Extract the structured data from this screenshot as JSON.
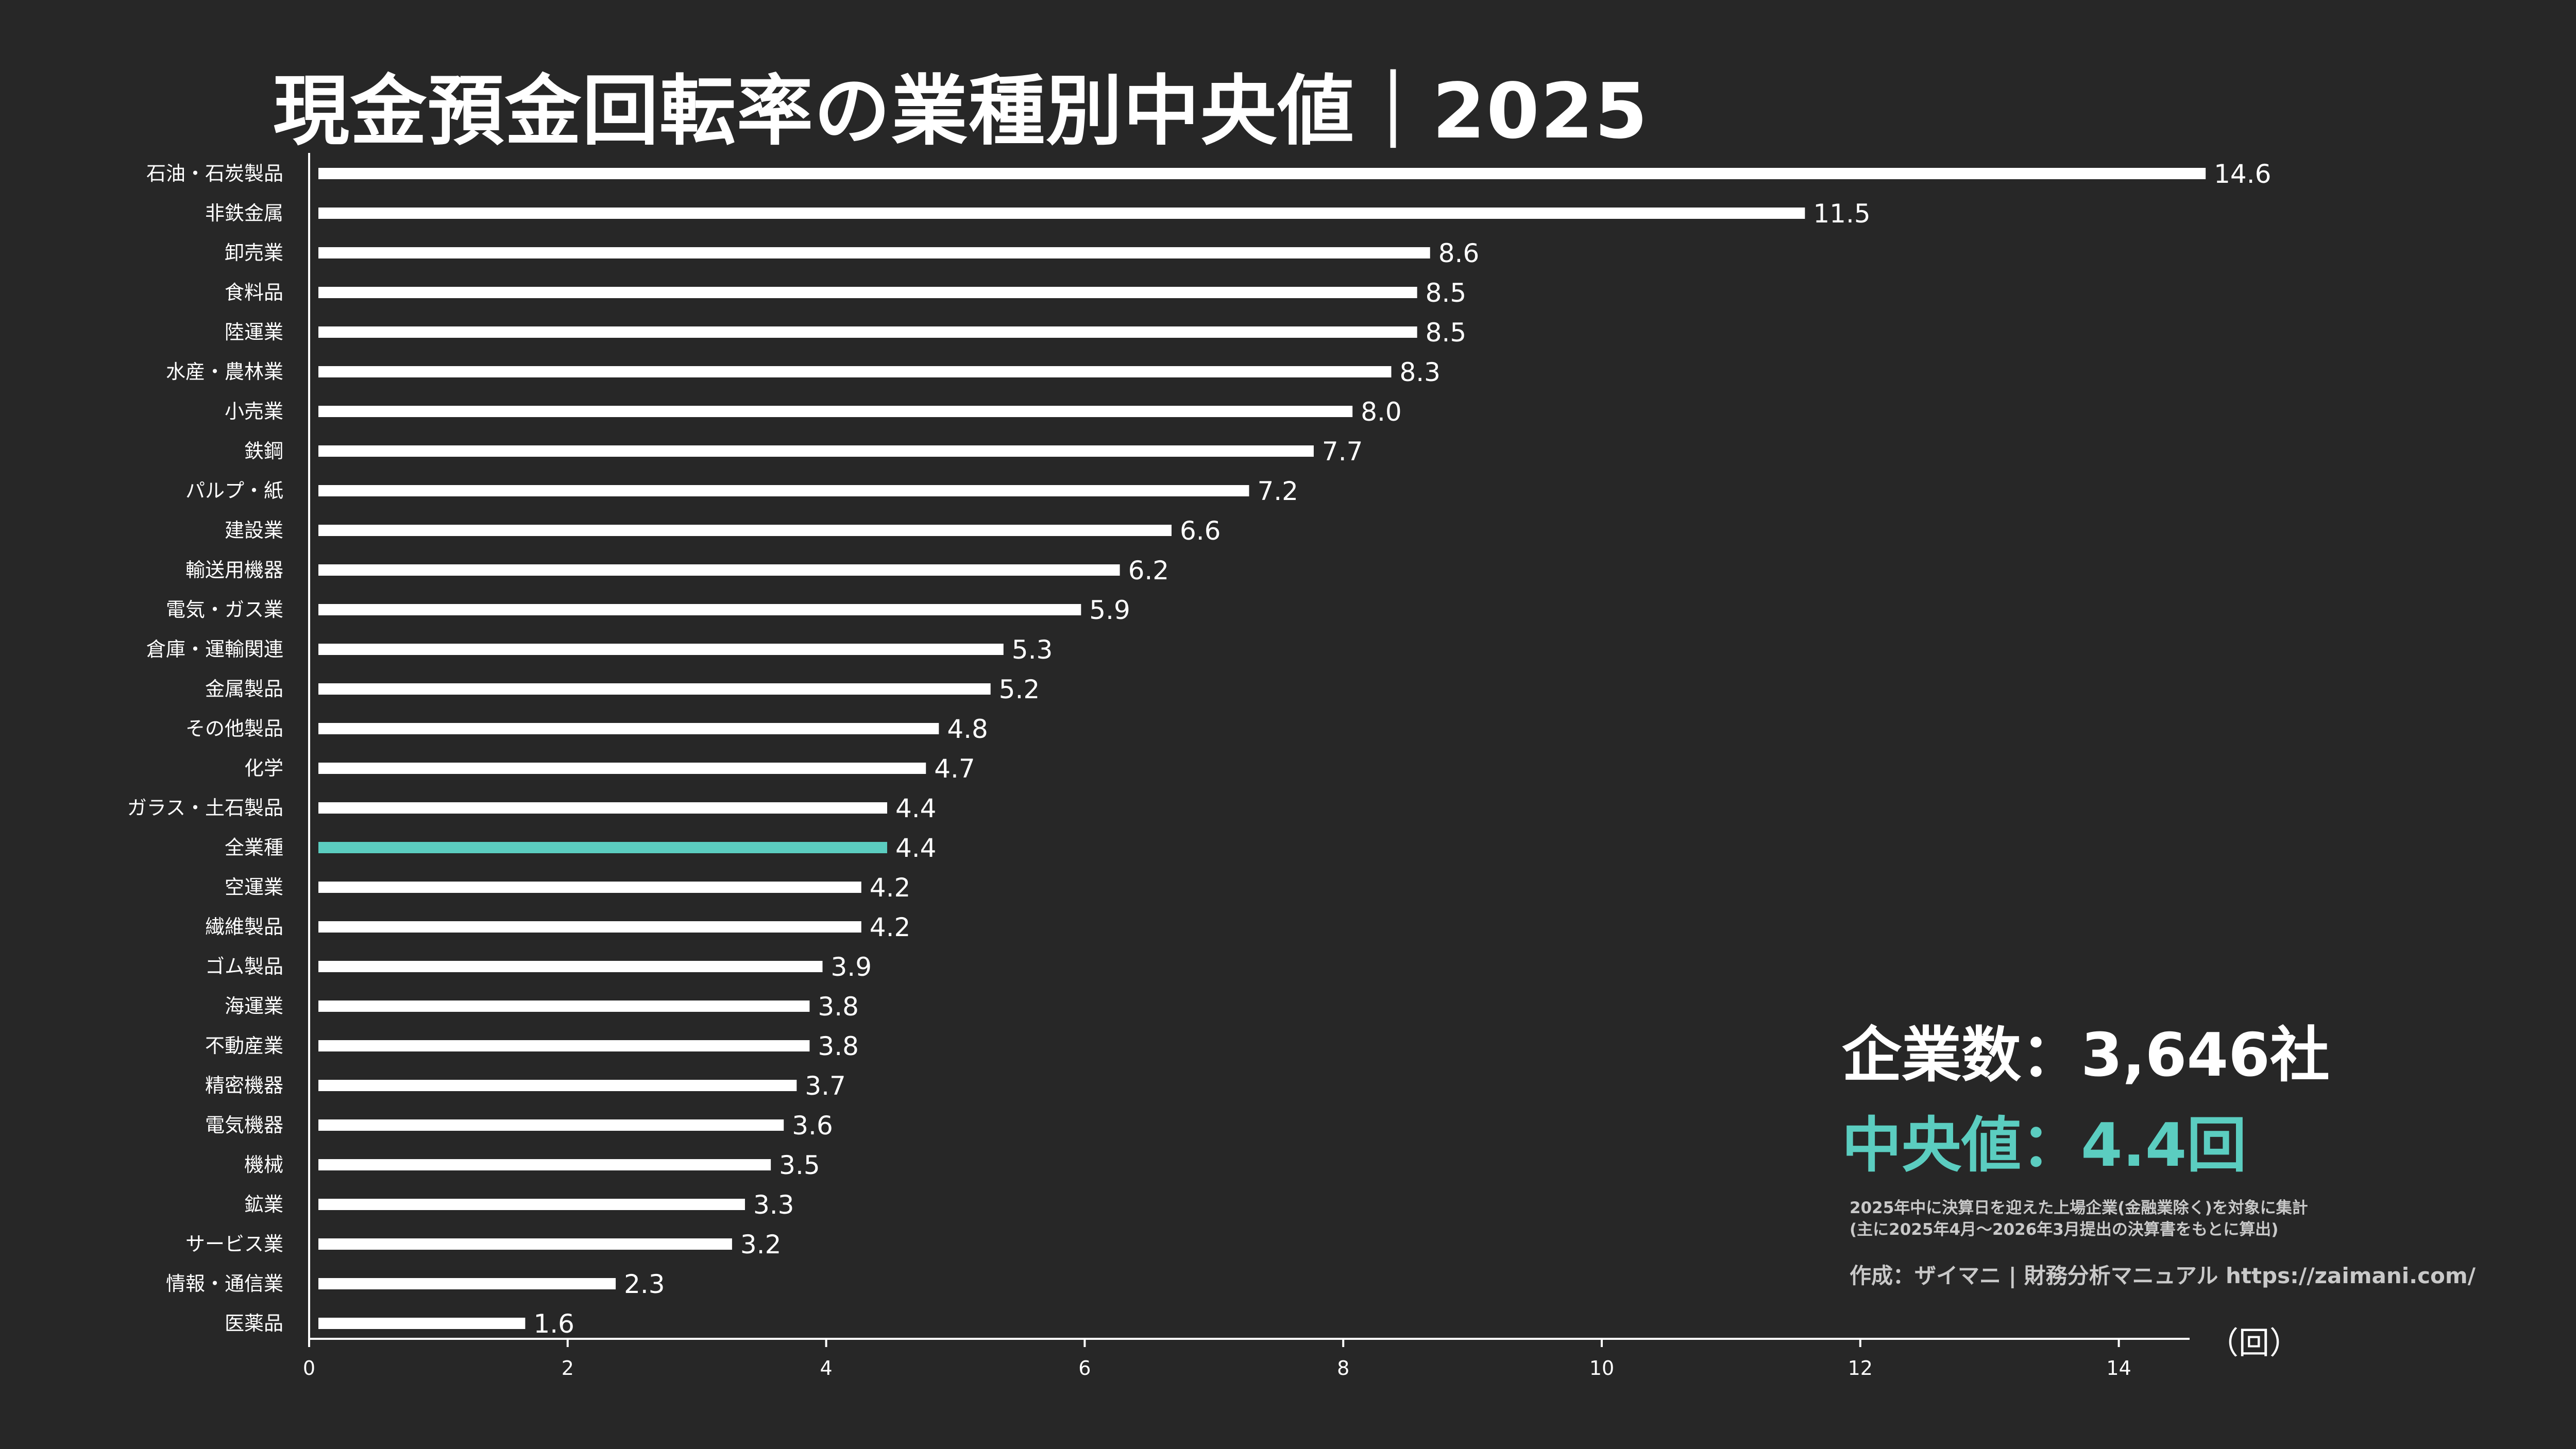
{
  "title": "現金預金回転率の業種別中央値｜2025",
  "unit_label": "（回）",
  "stats": {
    "count_text": "企業数：3,646社",
    "median_text": "中央値：4.4回"
  },
  "notes": {
    "line1": "2025年中に決算日を迎えた上場企業(金融業除く)を対象に集計",
    "line2": "(主に2025年4月～2026年3月提出の決算書をもとに算出)",
    "credit": "作成：ザイマニ | 財務分析マニュアル https://zaimani.com/"
  },
  "colors": {
    "background": "#272727",
    "bar": "#ffffff",
    "highlight": "#5bcdc0",
    "axis": "#ffffff",
    "note": "#c9c9c9"
  },
  "chart_data": {
    "type": "bar",
    "orientation": "horizontal",
    "title": "現金預金回転率の業種別中央値｜2025",
    "xlabel": "（回）",
    "ylabel": "",
    "xlim": [
      0,
      14.6
    ],
    "xticks": [
      0,
      2,
      4,
      6,
      8,
      10,
      12,
      14
    ],
    "grid": false,
    "highlight_category": "全業種",
    "categories": [
      "石油・石炭製品",
      "非鉄金属",
      "卸売業",
      "食料品",
      "陸運業",
      "水産・農林業",
      "小売業",
      "鉄鋼",
      "パルプ・紙",
      "建設業",
      "輸送用機器",
      "電気・ガス業",
      "倉庫・運輸関連",
      "金属製品",
      "その他製品",
      "化学",
      "ガラス・土石製品",
      "全業種",
      "空運業",
      "繊維製品",
      "ゴム製品",
      "海運業",
      "不動産業",
      "精密機器",
      "電気機器",
      "機械",
      "鉱業",
      "サービス業",
      "情報・通信業",
      "医薬品"
    ],
    "values": [
      14.6,
      11.5,
      8.6,
      8.5,
      8.5,
      8.3,
      8.0,
      7.7,
      7.2,
      6.6,
      6.2,
      5.9,
      5.3,
      5.2,
      4.8,
      4.7,
      4.4,
      4.4,
      4.2,
      4.2,
      3.9,
      3.8,
      3.8,
      3.7,
      3.6,
      3.5,
      3.3,
      3.2,
      2.3,
      1.6
    ],
    "value_labels": [
      "14.6",
      "11.5",
      "8.6",
      "8.5",
      "8.5",
      "8.3",
      "8.0",
      "7.7",
      "7.2",
      "6.6",
      "6.2",
      "5.9",
      "5.3",
      "5.2",
      "4.8",
      "4.7",
      "4.4",
      "4.4",
      "4.2",
      "4.2",
      "3.9",
      "3.8",
      "3.8",
      "3.7",
      "3.6",
      "3.5",
      "3.3",
      "3.2",
      "2.3",
      "1.6"
    ]
  }
}
